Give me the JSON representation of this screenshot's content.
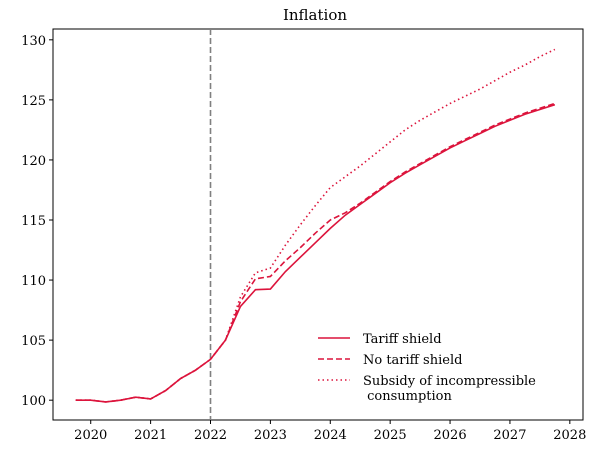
{
  "chart_data": {
    "type": "line",
    "title": "Inflation",
    "x": [
      2019.75,
      2020,
      2020.25,
      2020.5,
      2020.75,
      2021,
      2021.25,
      2021.5,
      2021.75,
      2022,
      2022.25,
      2022.5,
      2022.75,
      2023,
      2023.25,
      2023.5,
      2023.75,
      2024,
      2024.25,
      2024.5,
      2024.75,
      2025,
      2025.25,
      2025.5,
      2025.75,
      2026,
      2026.25,
      2026.5,
      2026.75,
      2027,
      2027.25,
      2027.5,
      2027.75
    ],
    "series": [
      {
        "name": "Tariff shield",
        "color": "#dc143c",
        "linestyle": "solid",
        "values": [
          100.0,
          100.0,
          99.85,
          100.0,
          100.25,
          100.1,
          100.8,
          101.8,
          102.5,
          103.4,
          105.0,
          107.8,
          109.2,
          109.25,
          110.7,
          111.9,
          113.1,
          114.3,
          115.4,
          116.3,
          117.2,
          118.1,
          118.9,
          119.6,
          120.3,
          121.0,
          121.6,
          122.2,
          122.8,
          123.3,
          123.8,
          124.2,
          124.6
        ]
      },
      {
        "name": "No tariff shield",
        "color": "#dc143c",
        "linestyle": "dashed",
        "values": [
          100.0,
          100.0,
          99.85,
          100.0,
          100.25,
          100.1,
          100.8,
          101.8,
          102.5,
          103.4,
          105.0,
          108.2,
          110.1,
          110.3,
          111.6,
          112.7,
          113.9,
          115.0,
          115.6,
          116.4,
          117.3,
          118.2,
          119.0,
          119.7,
          120.4,
          121.1,
          121.7,
          122.3,
          122.9,
          123.4,
          123.9,
          124.3,
          124.7
        ]
      },
      {
        "name": "Subsidy of incompressible\n consumption",
        "color": "#dc143c",
        "linestyle": "dotted",
        "values": [
          100.0,
          100.0,
          99.85,
          100.0,
          100.25,
          100.1,
          100.8,
          101.8,
          102.5,
          103.4,
          105.0,
          108.6,
          110.6,
          111.0,
          112.9,
          114.6,
          116.2,
          117.7,
          118.6,
          119.5,
          120.5,
          121.5,
          122.5,
          123.3,
          124.0,
          124.7,
          125.3,
          125.9,
          126.6,
          127.3,
          127.9,
          128.6,
          129.2
        ]
      }
    ],
    "vline": {
      "x": 2022,
      "color": "#808080"
    },
    "xlim": [
      2019.37,
      2028.22
    ],
    "xticks": [
      2020,
      2021,
      2022,
      2023,
      2024,
      2025,
      2026,
      2027,
      2028
    ],
    "ylim": [
      98.35,
      130.9
    ],
    "yticks": [
      100,
      105,
      110,
      115,
      120,
      125,
      130
    ],
    "legend": "lower right"
  }
}
